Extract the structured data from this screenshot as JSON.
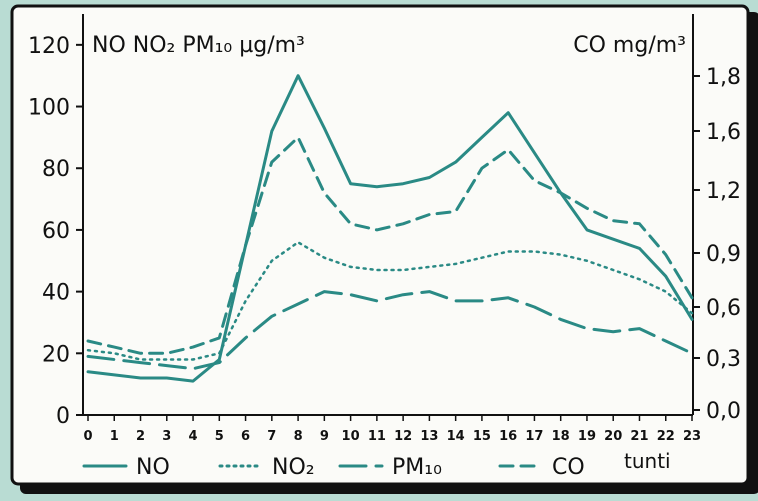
{
  "chart_data": {
    "type": "line",
    "x": [
      0,
      1,
      2,
      3,
      4,
      5,
      6,
      7,
      8,
      9,
      10,
      11,
      12,
      13,
      14,
      15,
      16,
      17,
      18,
      19,
      20,
      21,
      22,
      23
    ],
    "x_tick_labels": [
      "0",
      "1",
      "2",
      "3",
      "4",
      "5",
      "6",
      "7",
      "8",
      "9",
      "10",
      "11",
      "12",
      "13",
      "14",
      "15",
      "16",
      "17",
      "18",
      "19",
      "20",
      "21",
      "22",
      "23"
    ],
    "xlabel": "tunti",
    "left_axis": {
      "label": "NO NO₂ PM₁₀ µg/m³",
      "range": [
        0,
        130
      ],
      "ticks": [
        0,
        20,
        40,
        60,
        80,
        100,
        120
      ],
      "tick_labels": [
        "0",
        "20",
        "40",
        "60",
        "80",
        "100",
        "120"
      ]
    },
    "right_axis": {
      "label": "CO mg/m³",
      "ticks": [
        0.0,
        0.3,
        0.6,
        0.9,
        1.2,
        1.6,
        1.8
      ],
      "tick_labels": [
        "0,0",
        "0,3",
        "0,6",
        "0,9",
        "1,2",
        "1,6",
        "1,8"
      ]
    },
    "series": [
      {
        "name": "NO",
        "axis": "left",
        "style": "solid",
        "color": "#2a8a85",
        "values": [
          14,
          13,
          12,
          12,
          11,
          18,
          55,
          92,
          110,
          93,
          75,
          74,
          75,
          77,
          82,
          90,
          98,
          85,
          72,
          60,
          57,
          54,
          45,
          31
        ]
      },
      {
        "name": "NO₂",
        "axis": "left",
        "style": "dotted",
        "color": "#2a8a85",
        "values": [
          21,
          20,
          18,
          18,
          18,
          20,
          37,
          50,
          56,
          51,
          48,
          47,
          47,
          48,
          49,
          51,
          53,
          53,
          52,
          50,
          47,
          44,
          40,
          33
        ]
      },
      {
        "name": "PM₁₀",
        "axis": "left",
        "style": "longdash",
        "color": "#2a8a85",
        "values": [
          19,
          18,
          17,
          16,
          15,
          17,
          25,
          32,
          36,
          40,
          39,
          37,
          39,
          40,
          37,
          37,
          38,
          35,
          31,
          28,
          27,
          28,
          24,
          20
        ]
      },
      {
        "name": "CO",
        "axis": "left",
        "style": "shortdash",
        "color": "#2a8a85",
        "values": [
          24,
          22,
          20,
          20,
          22,
          25,
          55,
          82,
          90,
          72,
          62,
          60,
          62,
          65,
          66,
          80,
          86,
          76,
          72,
          67,
          63,
          62,
          52,
          38
        ]
      }
    ],
    "legend_position": "bottom",
    "grid": false
  }
}
